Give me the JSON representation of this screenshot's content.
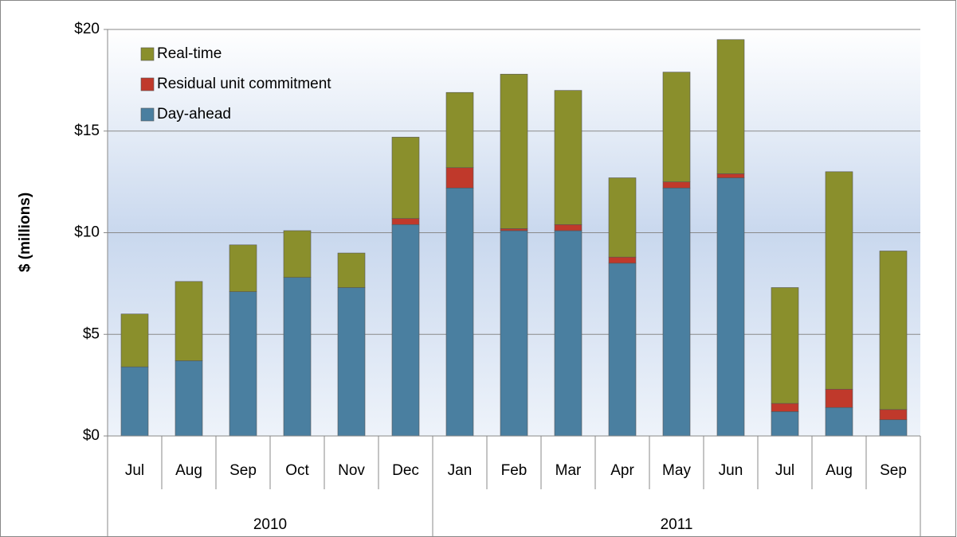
{
  "chart_data": {
    "type": "stacked_bar",
    "y_label": "$ (millions)",
    "groups": [
      {
        "name": "2010",
        "categories": [
          "Jul",
          "Aug",
          "Sep",
          "Oct",
          "Nov",
          "Dec"
        ]
      },
      {
        "name": "2011",
        "categories": [
          "Jan",
          "Feb",
          "Mar",
          "Apr",
          "May",
          "Jun",
          "Jul",
          "Aug",
          "Sep"
        ]
      }
    ],
    "series": [
      {
        "name": "Day-ahead",
        "color": "#4a7fa0",
        "values": [
          3.4,
          3.7,
          7.1,
          7.8,
          7.3,
          10.4,
          12.2,
          10.1,
          10.1,
          8.5,
          12.2,
          12.7,
          1.2,
          1.4,
          0.8
        ]
      },
      {
        "name": "Residual unit commitment",
        "color": "#c0392b",
        "values": [
          0,
          0,
          0,
          0,
          0,
          0.3,
          1.0,
          0.1,
          0.3,
          0.3,
          0.3,
          0.2,
          0.4,
          0.9,
          0.5
        ]
      },
      {
        "name": "Real-time",
        "color": "#8a8f2c",
        "values": [
          2.6,
          3.9,
          2.3,
          2.3,
          1.7,
          4.0,
          3.7,
          7.6,
          6.6,
          3.9,
          5.4,
          6.6,
          5.7,
          10.7,
          7.8
        ]
      }
    ],
    "ylim": [
      0,
      20
    ],
    "yticks": [
      {
        "value": 0,
        "label": "$0"
      },
      {
        "value": 5,
        "label": "$5"
      },
      {
        "value": 10,
        "label": "$10"
      },
      {
        "value": 15,
        "label": "$15"
      },
      {
        "value": 20,
        "label": "$20"
      }
    ],
    "grid": true,
    "legend": "top-left"
  }
}
